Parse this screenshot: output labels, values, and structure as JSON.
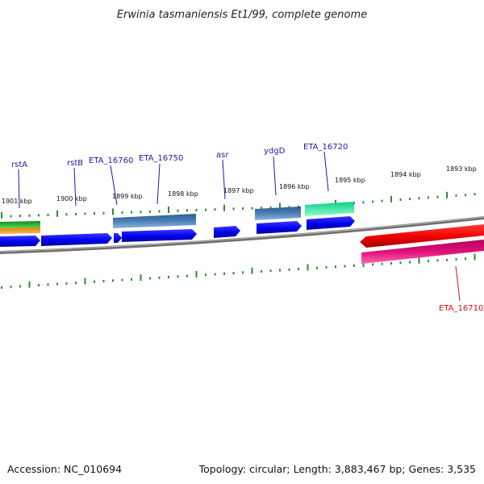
{
  "title": "Erwinia tasmaniensis Et1/99, complete genome",
  "footer": {
    "accession": "Accession: NC_010694",
    "summary": "Topology: circular; Length: 3,883,467 bp; Genes: 3,535"
  },
  "ticks": [
    {
      "label": "1901 kbp"
    },
    {
      "label": "1900 kbp"
    },
    {
      "label": "1899 kbp"
    },
    {
      "label": "1898 kbp"
    },
    {
      "label": "1897 kbp"
    },
    {
      "label": "1896 kbp"
    },
    {
      "label": "1895 kbp"
    },
    {
      "label": "1894 kbp"
    },
    {
      "label": "1893 kbp"
    }
  ],
  "gene_labels": [
    {
      "name": "rstA",
      "color": "#1a1aa6"
    },
    {
      "name": "rstB",
      "color": "#1a1aa6"
    },
    {
      "name": "ETA_16760",
      "color": "#1a1aa6"
    },
    {
      "name": "ETA_16750",
      "color": "#1a1aa6"
    },
    {
      "name": "asr",
      "color": "#1a1aa6"
    },
    {
      "name": "ydgD",
      "color": "#1a1aa6"
    },
    {
      "name": "ETA_16720",
      "color": "#1a1aa6"
    },
    {
      "name": "ETA_16710",
      "color": "#cc1111"
    }
  ],
  "colors": {
    "forward_cds": "#0000ee",
    "reverse_cds": "#ee0000",
    "backbone": "#808080",
    "tick": "#2e8b2e",
    "cog_steelblue": "#4a7fb5",
    "cog_green": "#22aa33",
    "cog_orange": "#f39a1e",
    "cog_aqua": "#22dd99",
    "cog_magenta": "#e0107a"
  }
}
